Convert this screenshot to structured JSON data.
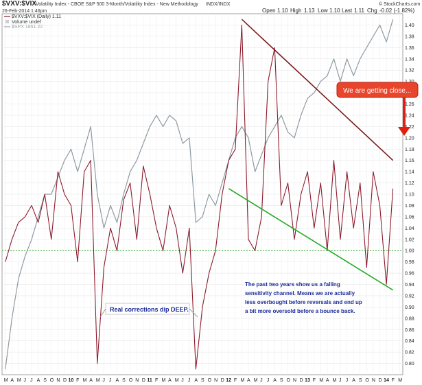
{
  "header": {
    "symbol": "$VXV:$VIX",
    "description": "Volatility Index - CBOE S&P 500 3-Month/Volatility Index - New Methodology",
    "exchange": "INDX/INDX",
    "credit": "© StockCharts.com",
    "date": "26-Feb-2014 1:46pm",
    "quote": {
      "open_label": "Open",
      "open": "1.10",
      "high_label": "High",
      "high": "1.13",
      "low_label": "Low",
      "low": "1.10",
      "last_label": "Last",
      "last": "1.11",
      "chg_label": "Chg",
      "chg": "-0.02 (-1.82%)"
    }
  },
  "legend": {
    "series_main": "$VXV:$VIX (Daily) 1.11",
    "volume": "Volume undef",
    "series_spx": "$SPX 1851.22"
  },
  "annotations": {
    "callout": "We are getting close...",
    "corrections": "Real corrections dip DEEP.",
    "channel_note": [
      "The past two years show us a falling",
      "sensitivity channel. Means we are actually",
      "less overbought before reversals and end up",
      "a bit more oversold before a bounce back."
    ]
  },
  "colors": {
    "ratio": "#8b1a2b",
    "spx": "#8e9aa3",
    "upper_trend": "#7a1b1b",
    "lower_trend": "#22aa22",
    "reference": "#22aa22",
    "callout_bg": "#e8452c",
    "arrow": "#e02010",
    "annotation_text": "#1a2a9a"
  },
  "chart_data": {
    "type": "line",
    "title": "$VXV:$VIX",
    "ylim": [
      0.78,
      1.42
    ],
    "y_ticks": [
      "0.80",
      "0.82",
      "0.84",
      "0.86",
      "0.88",
      "0.90",
      "0.92",
      "0.94",
      "0.96",
      "0.98",
      "1.00",
      "1.02",
      "1.04",
      "1.06",
      "1.08",
      "1.10",
      "1.12",
      "1.14",
      "1.16",
      "1.18",
      "1.20",
      "1.22",
      "1.24",
      "1.26",
      "1.28",
      "1.30",
      "1.32",
      "1.34",
      "1.36",
      "1.38",
      "1.40"
    ],
    "reference_line": 1.0,
    "x_month_labels": [
      "M",
      "A",
      "M",
      "J",
      "J",
      "A",
      "S",
      "O",
      "N",
      "D",
      "10",
      "F",
      "M",
      "A",
      "M",
      "J",
      "J",
      "A",
      "S",
      "O",
      "N",
      "D",
      "11",
      "F",
      "M",
      "A",
      "M",
      "J",
      "J",
      "A",
      "S",
      "O",
      "N",
      "D",
      "12",
      "F",
      "M",
      "A",
      "M",
      "J",
      "J",
      "A",
      "S",
      "O",
      "N",
      "D",
      "13",
      "F",
      "M",
      "A",
      "M",
      "J",
      "J",
      "A",
      "S",
      "O",
      "N",
      "D",
      "14",
      "F",
      "M"
    ],
    "x_start": "2009-03",
    "series": [
      {
        "name": "$VXV:$VIX (Daily)",
        "points": [
          [
            "2009-03",
            0.98
          ],
          [
            "2009-04",
            1.02
          ],
          [
            "2009-05",
            1.05
          ],
          [
            "2009-06",
            1.06
          ],
          [
            "2009-07",
            1.08
          ],
          [
            "2009-08",
            1.05
          ],
          [
            "2009-09",
            1.1
          ],
          [
            "2009-10",
            1.02
          ],
          [
            "2009-11",
            1.14
          ],
          [
            "2009-12",
            1.1
          ],
          [
            "2010-01",
            1.08
          ],
          [
            "2010-02",
            0.98
          ],
          [
            "2010-03",
            1.14
          ],
          [
            "2010-04",
            1.16
          ],
          [
            "2010-05",
            0.8
          ],
          [
            "2010-06",
            0.97
          ],
          [
            "2010-07",
            1.04
          ],
          [
            "2010-08",
            1.0
          ],
          [
            "2010-09",
            1.09
          ],
          [
            "2010-10",
            1.12
          ],
          [
            "2010-11",
            1.02
          ],
          [
            "2010-12",
            1.15
          ],
          [
            "2011-01",
            1.1
          ],
          [
            "2011-02",
            1.04
          ],
          [
            "2011-03",
            1.0
          ],
          [
            "2011-04",
            1.08
          ],
          [
            "2011-05",
            1.04
          ],
          [
            "2011-06",
            0.96
          ],
          [
            "2011-07",
            1.04
          ],
          [
            "2011-08",
            0.79
          ],
          [
            "2011-09",
            0.9
          ],
          [
            "2011-10",
            0.96
          ],
          [
            "2011-11",
            1.0
          ],
          [
            "2011-12",
            1.1
          ],
          [
            "2012-01",
            1.16
          ],
          [
            "2012-02",
            1.18
          ],
          [
            "2012-03",
            1.4
          ],
          [
            "2012-04",
            1.02
          ],
          [
            "2012-05",
            1.0
          ],
          [
            "2012-06",
            1.06
          ],
          [
            "2012-07",
            1.3
          ],
          [
            "2012-08",
            1.36
          ],
          [
            "2012-09",
            1.08
          ],
          [
            "2012-10",
            1.12
          ],
          [
            "2012-11",
            1.02
          ],
          [
            "2012-12",
            1.1
          ],
          [
            "2013-01",
            1.14
          ],
          [
            "2013-02",
            1.04
          ],
          [
            "2013-03",
            1.12
          ],
          [
            "2013-04",
            1.0
          ],
          [
            "2013-05",
            1.16
          ],
          [
            "2013-06",
            1.02
          ],
          [
            "2013-07",
            1.14
          ],
          [
            "2013-08",
            1.04
          ],
          [
            "2013-09",
            1.12
          ],
          [
            "2013-10",
            0.97
          ],
          [
            "2013-11",
            1.14
          ],
          [
            "2013-12",
            1.08
          ],
          [
            "2014-01",
            0.94
          ],
          [
            "2014-02",
            1.11
          ]
        ]
      },
      {
        "name": "$SPX",
        "points": [
          [
            "2009-03",
            0.79
          ],
          [
            "2009-04",
            0.88
          ],
          [
            "2009-05",
            0.95
          ],
          [
            "2009-06",
            0.99
          ],
          [
            "2009-07",
            1.02
          ],
          [
            "2009-08",
            1.06
          ],
          [
            "2009-09",
            1.1
          ],
          [
            "2009-10",
            1.1
          ],
          [
            "2009-11",
            1.13
          ],
          [
            "2009-12",
            1.16
          ],
          [
            "2010-01",
            1.18
          ],
          [
            "2010-02",
            1.14
          ],
          [
            "2010-03",
            1.18
          ],
          [
            "2010-04",
            1.22
          ],
          [
            "2010-05",
            1.1
          ],
          [
            "2010-06",
            1.04
          ],
          [
            "2010-07",
            1.08
          ],
          [
            "2010-08",
            1.05
          ],
          [
            "2010-09",
            1.1
          ],
          [
            "2010-10",
            1.14
          ],
          [
            "2010-11",
            1.16
          ],
          [
            "2010-12",
            1.19
          ],
          [
            "2011-01",
            1.22
          ],
          [
            "2011-02",
            1.24
          ],
          [
            "2011-03",
            1.22
          ],
          [
            "2011-04",
            1.24
          ],
          [
            "2011-05",
            1.23
          ],
          [
            "2011-06",
            1.19
          ],
          [
            "2011-07",
            1.2
          ],
          [
            "2011-08",
            1.05
          ],
          [
            "2011-09",
            1.06
          ],
          [
            "2011-10",
            1.1
          ],
          [
            "2011-11",
            1.08
          ],
          [
            "2011-12",
            1.12
          ],
          [
            "2012-01",
            1.16
          ],
          [
            "2012-02",
            1.2
          ],
          [
            "2012-03",
            1.22
          ],
          [
            "2012-04",
            1.2
          ],
          [
            "2012-05",
            1.14
          ],
          [
            "2012-06",
            1.17
          ],
          [
            "2012-07",
            1.2
          ],
          [
            "2012-08",
            1.22
          ],
          [
            "2012-09",
            1.24
          ],
          [
            "2012-10",
            1.21
          ],
          [
            "2012-11",
            1.2
          ],
          [
            "2012-12",
            1.24
          ],
          [
            "2013-01",
            1.27
          ],
          [
            "2013-02",
            1.28
          ],
          [
            "2013-03",
            1.3
          ],
          [
            "2013-04",
            1.31
          ],
          [
            "2013-05",
            1.34
          ],
          [
            "2013-06",
            1.3
          ],
          [
            "2013-07",
            1.34
          ],
          [
            "2013-08",
            1.31
          ],
          [
            "2013-09",
            1.34
          ],
          [
            "2013-10",
            1.36
          ],
          [
            "2013-11",
            1.38
          ],
          [
            "2013-12",
            1.4
          ],
          [
            "2014-01",
            1.37
          ],
          [
            "2014-02",
            1.41
          ]
        ]
      }
    ],
    "trendlines": [
      {
        "name": "upper",
        "from": [
          "2012-03",
          1.41
        ],
        "to": [
          "2014-02",
          1.16
        ]
      },
      {
        "name": "lower",
        "from": [
          "2012-01",
          1.11
        ],
        "to": [
          "2014-02",
          0.93
        ]
      }
    ],
    "grid": true
  }
}
